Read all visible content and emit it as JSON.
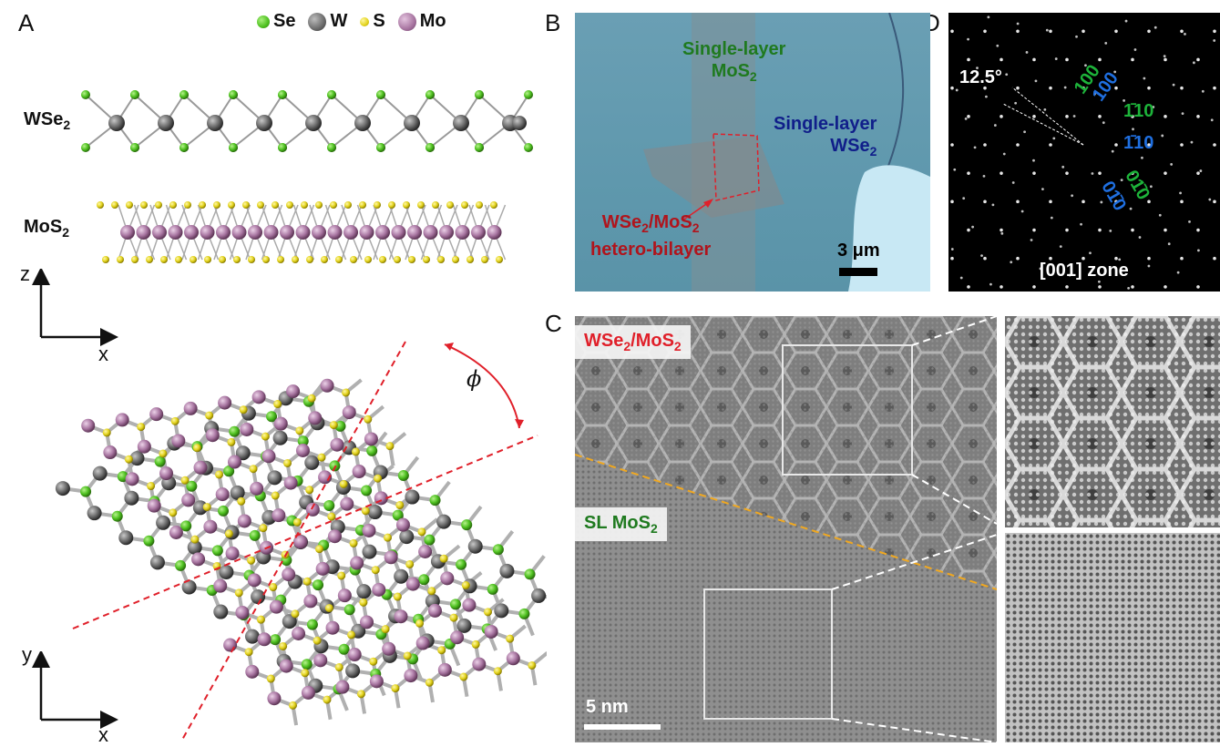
{
  "panel_labels": {
    "a": "A",
    "b": "B",
    "c": "C",
    "d": "D"
  },
  "legend": [
    {
      "label": "Se",
      "color": "#4cbf1e"
    },
    {
      "label": "W",
      "color": "#6b6b6b"
    },
    {
      "label": "S",
      "color": "#e2d21a"
    },
    {
      "label": "Mo",
      "color": "#a774a0"
    }
  ],
  "panel_a": {
    "layer_top": "WSe",
    "layer_top_sub": "2",
    "layer_bottom": "MoS",
    "layer_bottom_sub": "2",
    "side_axes": {
      "vertical": "z",
      "horizontal": "x"
    },
    "top_axes": {
      "vertical": "y",
      "horizontal": "x"
    },
    "angle_symbol": "ϕ"
  },
  "panel_b": {
    "mos2_label_line1": "Single-layer",
    "mos2_label_line2": "MoS",
    "mos2_label_sub": "2",
    "wse2_label_line1": "Single-layer",
    "wse2_label_line2": "WSe",
    "wse2_label_sub": "2",
    "hetero_line1_a": "WSe",
    "hetero_line1_sub1": "2",
    "hetero_line1_b": "/MoS",
    "hetero_line1_sub2": "2",
    "hetero_line2": "hetero-bilayer",
    "scalebar": "3 μm"
  },
  "panel_c": {
    "tag_top_a": "WSe",
    "tag_top_sub1": "2",
    "tag_top_b": "/MoS",
    "tag_top_sub2": "2",
    "tag_bottom_a": "SL MoS",
    "tag_bottom_sub": "2",
    "scalebar": "5 nm"
  },
  "panel_d": {
    "angle": "12.5°",
    "green_100": "100",
    "blue_100": "100",
    "green_110": "1̄10",
    "blue_110": "1̄10",
    "green_010": "01̄0",
    "blue_010": "01̄0",
    "zone": "[001] zone"
  }
}
